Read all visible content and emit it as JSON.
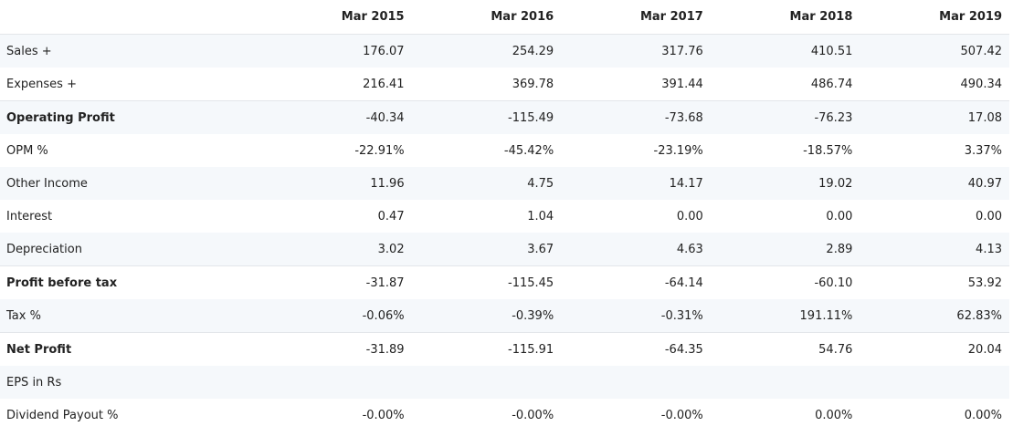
{
  "table": {
    "columns": [
      "Mar 2015",
      "Mar 2016",
      "Mar 2017",
      "Mar 2018",
      "Mar 2019"
    ],
    "rows": [
      {
        "label": "Sales +",
        "values": [
          "176.07",
          "254.29",
          "317.76",
          "410.51",
          "507.42"
        ]
      },
      {
        "label": "Expenses +",
        "values": [
          "216.41",
          "369.78",
          "391.44",
          "486.74",
          "490.34"
        ]
      },
      {
        "label": "Operating Profit",
        "values": [
          "-40.34",
          "-115.49",
          "-73.68",
          "-76.23",
          "17.08"
        ]
      },
      {
        "label": "OPM %",
        "values": [
          "-22.91%",
          "-45.42%",
          "-23.19%",
          "-18.57%",
          "3.37%"
        ]
      },
      {
        "label": "Other Income",
        "values": [
          "11.96",
          "4.75",
          "14.17",
          "19.02",
          "40.97"
        ]
      },
      {
        "label": "Interest",
        "values": [
          "0.47",
          "1.04",
          "0.00",
          "0.00",
          "0.00"
        ]
      },
      {
        "label": "Depreciation",
        "values": [
          "3.02",
          "3.67",
          "4.63",
          "2.89",
          "4.13"
        ]
      },
      {
        "label": "Profit before tax",
        "values": [
          "-31.87",
          "-115.45",
          "-64.14",
          "-60.10",
          "53.92"
        ]
      },
      {
        "label": "Tax %",
        "values": [
          "-0.06%",
          "-0.39%",
          "-0.31%",
          "191.11%",
          "62.83%"
        ]
      },
      {
        "label": "Net Profit",
        "values": [
          "-31.89",
          "-115.91",
          "-64.35",
          "54.76",
          "20.04"
        ]
      },
      {
        "label": "EPS in Rs",
        "values": [
          "",
          "",
          "",
          "",
          ""
        ]
      },
      {
        "label": "Dividend Payout %",
        "values": [
          "-0.00%",
          "-0.00%",
          "-0.00%",
          "0.00%",
          "0.00%"
        ]
      }
    ]
  }
}
